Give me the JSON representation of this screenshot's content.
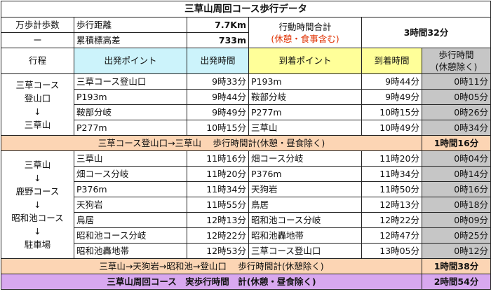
{
  "title": "三草山周回コース歩行データ",
  "summary": {
    "step_label": "万歩計歩数",
    "step_value": "ー",
    "distance_label": "歩行距離",
    "distance_value": "7.7Km",
    "elevation_label": "累積標高差",
    "elevation_value": "733m",
    "time_label_1": "行動時間合計",
    "time_label_2": "(休憩・食事含む)",
    "time_value": "3時間32分"
  },
  "headers": {
    "route": "行程",
    "start_point": "出発ポイント",
    "start_time": "出発時間",
    "end_point": "到着ポイント",
    "end_time": "到着時間",
    "walk_time_1": "歩行時間",
    "walk_time_2": "(休憩除く)"
  },
  "section1": {
    "route_lines": [
      "三草コース",
      "登山口",
      "↓",
      "三草山"
    ],
    "rows": [
      {
        "start": "三草コース登山口",
        "stime": "9時33分",
        "end": "P193m",
        "etime": "9時44分",
        "walk": "0時11分"
      },
      {
        "start": "P193m",
        "stime": "9時44分",
        "end": "鞍部分岐",
        "etime": "9時49分",
        "walk": "0時05分"
      },
      {
        "start": "鞍部分岐",
        "stime": "9時49分",
        "end": "P277m",
        "etime": "10時15分",
        "walk": "0時26分"
      },
      {
        "start": "P277m",
        "stime": "10時15分",
        "end": "三草山",
        "etime": "10時49分",
        "walk": "0時34分"
      }
    ],
    "subtotal_label": "三草コース登山口→三草山　 歩行時間計(休憩・昼食除く)",
    "subtotal_value": "1時間16分"
  },
  "section2": {
    "route_lines": [
      "三草山",
      "↓",
      "鹿野コース",
      "↓",
      "昭和池コース",
      "↓",
      "駐車場"
    ],
    "rows": [
      {
        "start": "三草山",
        "stime": "11時16分",
        "end": "畑コース分岐",
        "etime": "11時20分",
        "walk": "0時04分"
      },
      {
        "start": "畑コース分岐",
        "stime": "11時20分",
        "end": "P376m",
        "etime": "11時34分",
        "walk": "0時14分"
      },
      {
        "start": "P376m",
        "stime": "11時34分",
        "end": "天狗岩",
        "etime": "11時50分",
        "walk": "0時16分"
      },
      {
        "start": "天狗岩",
        "stime": "11時55分",
        "end": "鳥居",
        "etime": "12時13分",
        "walk": "0時18分"
      },
      {
        "start": "鳥居",
        "stime": "12時13分",
        "end": "昭和池コース分岐",
        "etime": "12時22分",
        "walk": "0時09分"
      },
      {
        "start": "昭和池コース分岐",
        "stime": "12時22分",
        "end": "昭和池轟地帯",
        "etime": "12時47分",
        "walk": "0時25分"
      },
      {
        "start": "昭和池轟地帯",
        "stime": "12時53分",
        "end": "三草コース登山口",
        "etime": "13時05分",
        "walk": "0時12分"
      }
    ],
    "subtotal_label": "三草山→天狗岩→昭和池→登山口　 歩行時間計(休憩除く)",
    "subtotal_value": "1時間38分"
  },
  "total": {
    "label": "三草山周回コース　実歩行時間　計(休憩・昼食除く)",
    "value": "2時間54分"
  },
  "colors": {
    "start_header": "#ccf3fb",
    "end_header": "#ffff99",
    "walk_column": "#c6c6c6",
    "subtotal": "#fcd5b4",
    "total": "#d8a8ef",
    "note_red": "#e03000"
  }
}
